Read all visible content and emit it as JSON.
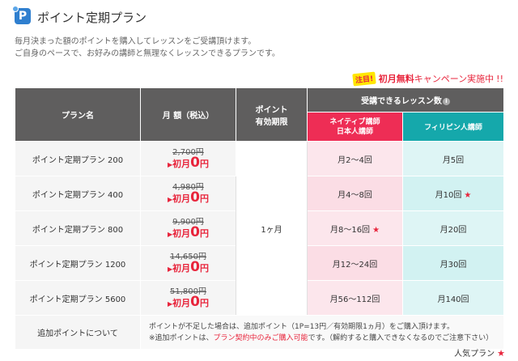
{
  "header": {
    "icon": "point-coin-icon",
    "icon_letter": "P",
    "title": "ポイント定期プラン"
  },
  "description": [
    "毎月決まった額のポイントを購入してレッスンをご受講頂けます。",
    "ご自身のペースで、お好みの講師と無理なくレッスンできるプランです。"
  ],
  "campaign": {
    "badge": "注目!",
    "highlight": "初月無料",
    "text": "キャンペーン実施中",
    "suffix": "!!"
  },
  "table": {
    "headers": {
      "plan_name": "プラン名",
      "price": "月 額（税込）",
      "period_l1": "ポイント",
      "period_l2": "有効期限",
      "lessons": "受講できるレッスン数",
      "info_icon": "i",
      "native_l1": "ネイティブ講師",
      "native_l2": "日本人講師",
      "filipino": "フィリピン人講師"
    },
    "period_value": "1ヶ月",
    "first_month_label": "初月",
    "arrow": "▶",
    "zero": "0",
    "yen": "円",
    "star": "★",
    "rows": [
      {
        "name": "ポイント定期プラン 200",
        "old_price": "2,700円",
        "native": "月2～4回",
        "filipino": "月5回"
      },
      {
        "name": "ポイント定期プラン 400",
        "old_price": "4,980円",
        "native": "月4～8回",
        "filipino": "月10回"
      },
      {
        "name": "ポイント定期プラン 800",
        "old_price": "9,900円",
        "native": "月8～16回",
        "filipino": "月20回"
      },
      {
        "name": "ポイント定期プラン 1200",
        "old_price": "14,650円",
        "native": "月12～24回",
        "filipino": "月30回"
      },
      {
        "name": "ポイント定期プラン 5600",
        "old_price": "51,800円",
        "native": "月56～112回",
        "filipino": "月140回"
      }
    ],
    "extra": {
      "name": "追加ポイントについて",
      "line1": "ポイントが不足した場合は、追加ポイント（1P=13円／有効期限1ヵ月）をご購入頂けます。",
      "line2_a": "※追加ポイントは、",
      "line2_red": "プラン契約中のみご購入可能",
      "line2_b": "です。（解約すると購入できなくなるのでご注意下さい）"
    }
  },
  "legend": {
    "text": "人気プラン",
    "star": "★"
  },
  "colors": {
    "accent_red": "#e8253c",
    "native_header": "#ee2d55",
    "filipino_header": "#15a8ab",
    "header_gray": "#5f5e5e",
    "brand_blue": "#2f7fcf"
  }
}
